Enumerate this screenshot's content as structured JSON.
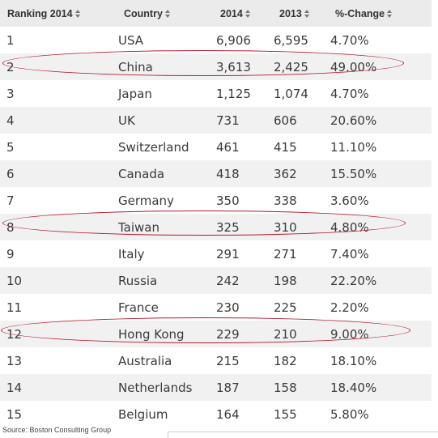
{
  "headers": {
    "rank": "Ranking 2014",
    "country": "Country",
    "y2014": "2014",
    "y2013": "2013",
    "change": "%-Change"
  },
  "rows": [
    {
      "rank": "1",
      "country": "USA",
      "y2014": "6,906",
      "y2013": "6,595",
      "change": "4.70%"
    },
    {
      "rank": "2",
      "country": "China",
      "y2014": "3,613",
      "y2013": "2,425",
      "change": "49.00%"
    },
    {
      "rank": "3",
      "country": "Japan",
      "y2014": "1,125",
      "y2013": "1,074",
      "change": "4.70%"
    },
    {
      "rank": "4",
      "country": "UK",
      "y2014": "731",
      "y2013": "606",
      "change": "20.60%"
    },
    {
      "rank": "5",
      "country": "Switzerland",
      "y2014": "461",
      "y2013": "415",
      "change": "11.10%"
    },
    {
      "rank": "6",
      "country": "Canada",
      "y2014": "418",
      "y2013": "362",
      "change": "15.50%"
    },
    {
      "rank": "7",
      "country": "Germany",
      "y2014": "350",
      "y2013": "338",
      "change": "3.60%"
    },
    {
      "rank": "8",
      "country": "Taiwan",
      "y2014": "325",
      "y2013": "310",
      "change": "4.80%"
    },
    {
      "rank": "9",
      "country": "Italy",
      "y2014": "291",
      "y2013": "271",
      "change": "7.40%"
    },
    {
      "rank": "10",
      "country": "Russia",
      "y2014": "242",
      "y2013": "198",
      "change": "22.20%"
    },
    {
      "rank": "11",
      "country": "France",
      "y2014": "230",
      "y2013": "225",
      "change": "2.20%"
    },
    {
      "rank": "12",
      "country": "Hong Kong",
      "y2014": "229",
      "y2013": "210",
      "change": "9.00%"
    },
    {
      "rank": "13",
      "country": "Australia",
      "y2014": "215",
      "y2013": "182",
      "change": "18.10%"
    },
    {
      "rank": "14",
      "country": "Netherlands",
      "y2014": "187",
      "y2013": "158",
      "change": "18.40%"
    },
    {
      "rank": "15",
      "country": "Belgium",
      "y2014": "164",
      "y2013": "155",
      "change": "5.80%"
    }
  ],
  "source": "Source: Boston Consulting Group",
  "colors": {
    "header_bg": "#ebebeb",
    "stripe_bg": "#f1f1f1",
    "highlight_ellipse": "#b3182e"
  },
  "icons": {
    "sort": "sort-arrows-icon"
  }
}
